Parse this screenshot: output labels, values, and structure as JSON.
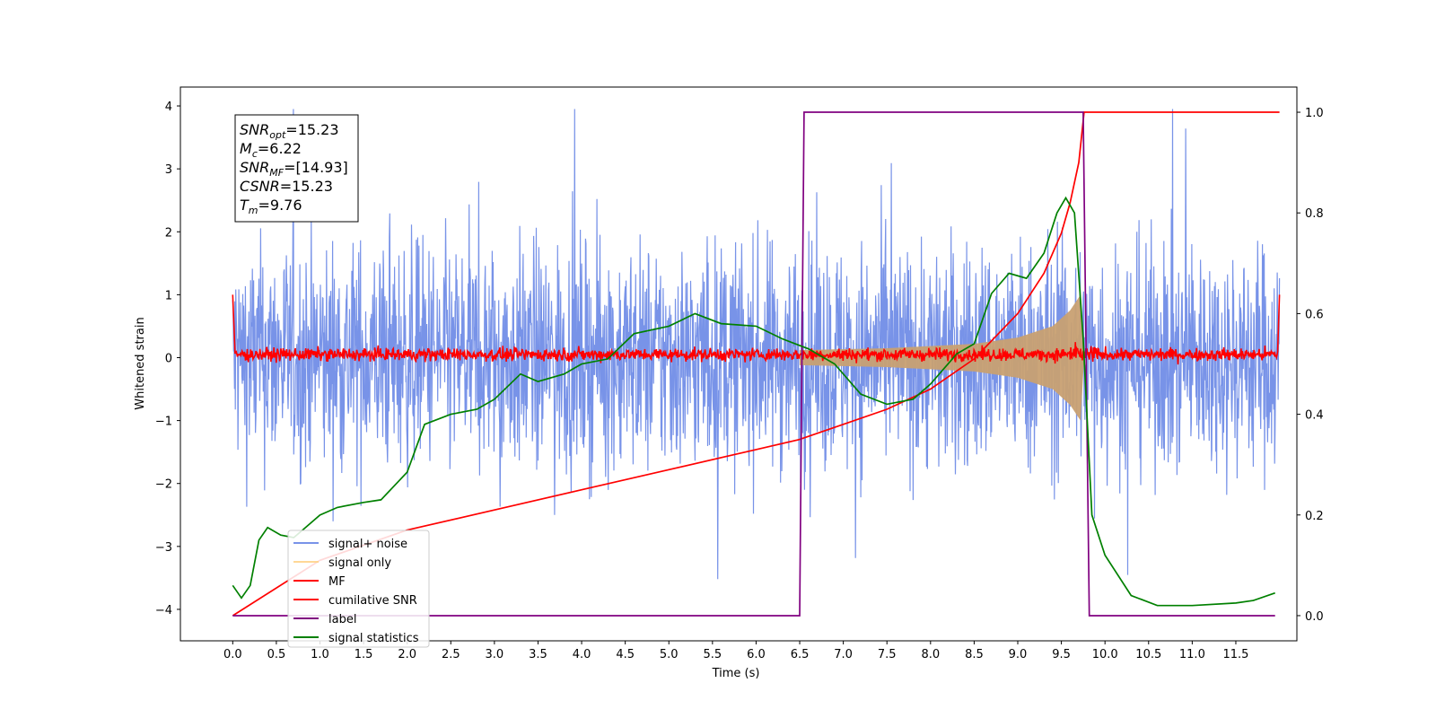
{
  "chart_data": {
    "type": "line",
    "title": "",
    "xlabel": "Time (s)",
    "ylabel": "Whitened strain",
    "xlim": [
      -0.6,
      12.2
    ],
    "ylim": [
      -4.5,
      4.3
    ],
    "y2lim": [
      -0.05,
      1.05
    ],
    "grid": false,
    "legend_position": "lower-left",
    "x_ticks": [
      "0.0",
      "0.5",
      "1.0",
      "1.5",
      "2.0",
      "2.5",
      "3.0",
      "3.5",
      "4.0",
      "4.5",
      "5.0",
      "5.5",
      "6.0",
      "6.5",
      "7.0",
      "7.5",
      "8.0",
      "8.5",
      "9.0",
      "9.5",
      "10.0",
      "10.5",
      "11.0",
      "11.5"
    ],
    "y_ticks": [
      "4",
      "3",
      "2",
      "1",
      "0",
      "−1",
      "−2",
      "−3",
      "−4"
    ],
    "y2_ticks": [
      "1.0",
      "0.8",
      "0.6",
      "0.4",
      "0.2",
      "0.0"
    ],
    "annotation": {
      "snr_opt": {
        "sym": "SNR",
        "sub": "opt",
        "value": "=15.23"
      },
      "mc": {
        "sym": "M",
        "sub": "c",
        "value": "=6.22"
      },
      "snr_mf": {
        "sym": "SNR",
        "sub": "MF",
        "value": "=[14.93]"
      },
      "csnr": {
        "sym": "CSNR",
        "sub": "",
        "value": "=15.23"
      },
      "tm": {
        "sym": "T",
        "sub": "m",
        "value": "=9.76"
      }
    },
    "series": [
      {
        "name": "signal+ noise",
        "color": "#7893e8",
        "axis": "left",
        "noise_amplitude": 1.15,
        "t_range": [
          0.0,
          12.0
        ]
      },
      {
        "name": "signal only",
        "color": "#ffd184",
        "axis": "left",
        "envelope": [
          [
            6.5,
            0.12
          ],
          [
            7.5,
            0.15
          ],
          [
            8.5,
            0.22
          ],
          [
            9.0,
            0.32
          ],
          [
            9.4,
            0.5
          ],
          [
            9.6,
            0.75
          ],
          [
            9.72,
            1.0
          ],
          [
            9.76,
            0.0
          ]
        ]
      },
      {
        "name": "MF",
        "color": "#ff0000",
        "axis": "left",
        "baseline": 0.05,
        "start_value": 1.0,
        "end_value": 1.0
      },
      {
        "name": "cumilative SNR",
        "color": "#ff0000",
        "axis": "right",
        "x": [
          0.0,
          1.0,
          2.0,
          3.0,
          4.0,
          5.0,
          6.0,
          6.5,
          7.0,
          7.5,
          8.0,
          8.5,
          9.0,
          9.3,
          9.5,
          9.6,
          9.7,
          9.76,
          12.0
        ],
        "values": [
          0.0,
          0.11,
          0.17,
          0.21,
          0.25,
          0.29,
          0.33,
          0.35,
          0.38,
          0.41,
          0.45,
          0.51,
          0.6,
          0.68,
          0.76,
          0.82,
          0.9,
          1.0,
          1.0
        ]
      },
      {
        "name": "label",
        "color": "#800080",
        "axis": "right",
        "x": [
          0.0,
          6.5,
          6.55,
          9.75,
          9.82,
          11.95
        ],
        "values": [
          0.0,
          0.0,
          1.0,
          1.0,
          0.0,
          0.0
        ]
      },
      {
        "name": "signal statistics",
        "color": "#008000",
        "axis": "right",
        "x": [
          0.0,
          0.1,
          0.2,
          0.3,
          0.4,
          0.55,
          0.7,
          0.8,
          1.0,
          1.2,
          1.5,
          1.7,
          2.0,
          2.2,
          2.5,
          2.8,
          3.0,
          3.3,
          3.5,
          3.8,
          4.0,
          4.3,
          4.6,
          5.0,
          5.3,
          5.6,
          6.0,
          6.3,
          6.6,
          6.9,
          7.2,
          7.5,
          7.8,
          8.0,
          8.3,
          8.5,
          8.7,
          8.9,
          9.1,
          9.3,
          9.45,
          9.55,
          9.65,
          9.75,
          9.85,
          10.0,
          10.3,
          10.6,
          11.0,
          11.5,
          11.7,
          11.95
        ],
        "values": [
          0.06,
          0.035,
          0.06,
          0.15,
          0.175,
          0.16,
          0.155,
          0.17,
          0.2,
          0.215,
          0.225,
          0.23,
          0.285,
          0.38,
          0.4,
          0.41,
          0.43,
          0.48,
          0.465,
          0.48,
          0.5,
          0.51,
          0.56,
          0.575,
          0.6,
          0.58,
          0.575,
          0.55,
          0.53,
          0.5,
          0.44,
          0.42,
          0.43,
          0.46,
          0.52,
          0.54,
          0.64,
          0.68,
          0.67,
          0.72,
          0.8,
          0.83,
          0.8,
          0.55,
          0.2,
          0.12,
          0.04,
          0.02,
          0.02,
          0.025,
          0.03,
          0.045
        ]
      }
    ]
  }
}
